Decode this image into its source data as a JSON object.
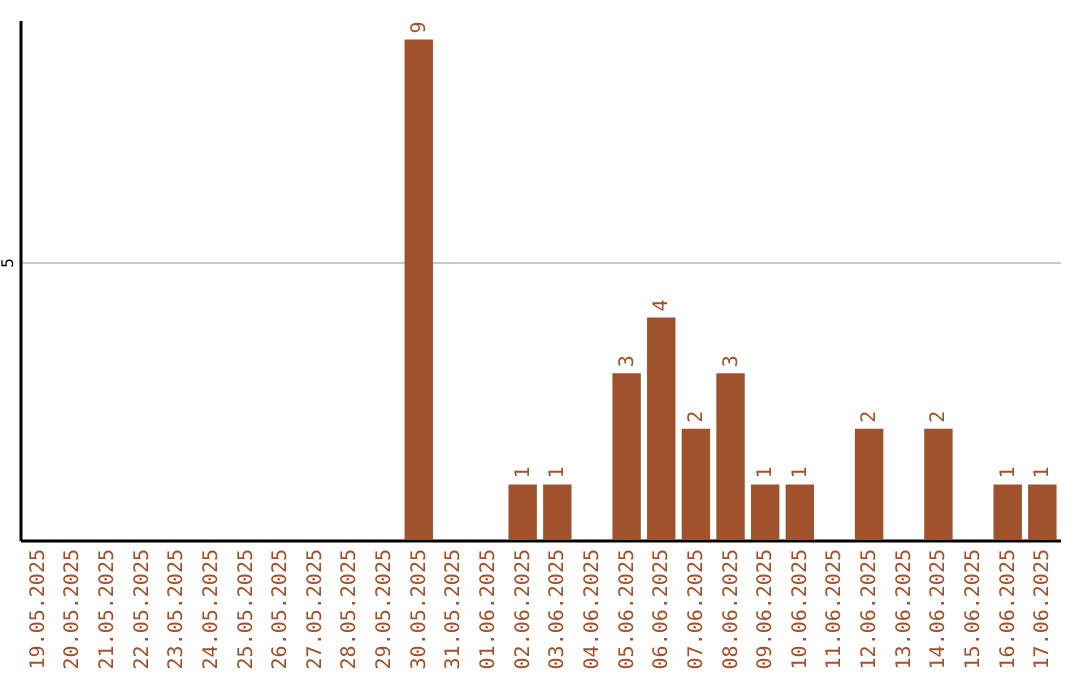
{
  "chart_data": {
    "type": "bar",
    "categories": [
      "19.05.2025",
      "20.05.2025",
      "21.05.2025",
      "22.05.2025",
      "23.05.2025",
      "24.05.2025",
      "25.05.2025",
      "26.05.2025",
      "27.05.2025",
      "28.05.2025",
      "29.05.2025",
      "30.05.2025",
      "31.05.2025",
      "01.06.2025",
      "02.06.2025",
      "03.06.2025",
      "04.06.2025",
      "05.06.2025",
      "06.06.2025",
      "07.06.2025",
      "08.06.2025",
      "09.06.2025",
      "10.06.2025",
      "11.06.2025",
      "12.06.2025",
      "13.06.2025",
      "14.06.2025",
      "15.06.2025",
      "16.06.2025",
      "17.06.2025"
    ],
    "values": [
      0,
      0,
      0,
      0,
      0,
      0,
      0,
      0,
      0,
      0,
      0,
      9,
      0,
      0,
      1,
      1,
      0,
      3,
      4,
      2,
      3,
      1,
      1,
      0,
      2,
      0,
      2,
      0,
      1,
      1
    ],
    "value_labels": [
      null,
      null,
      null,
      null,
      null,
      null,
      null,
      null,
      null,
      null,
      null,
      "9",
      null,
      null,
      "1",
      "1",
      null,
      "3",
      "4",
      "2",
      "3",
      "1",
      "1",
      null,
      "2",
      null,
      "2",
      null,
      "1",
      "1"
    ],
    "color": "#a0522d",
    "ylim": [
      0,
      9.35
    ],
    "yticks": [
      5
    ],
    "grid": "y"
  }
}
